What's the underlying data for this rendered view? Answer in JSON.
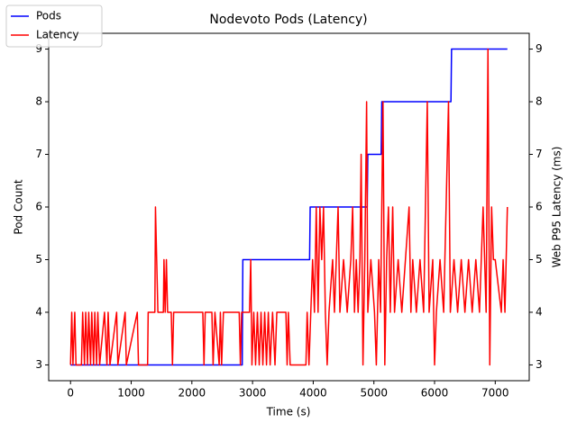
{
  "chart_data": {
    "type": "line",
    "title": "Nodevoto Pods (Latency)",
    "x_label": "Time (s)",
    "y_label": "Pod Count",
    "y2_label": "Web P95 Latency (ms)",
    "xlim": [
      -360,
      7560
    ],
    "xticks": [
      0,
      1000,
      2000,
      3000,
      4000,
      5000,
      6000,
      7000
    ],
    "ylim": [
      2.7,
      9.3
    ],
    "yticks": [
      3,
      4,
      5,
      6,
      7,
      8,
      9
    ],
    "y2lim": [
      2.7,
      9.3
    ],
    "y2ticks": [
      3,
      4,
      5,
      6,
      7,
      8,
      9
    ],
    "legend": "upper left",
    "series": [
      {
        "name": "Pods",
        "color": "#0000ff",
        "x": [
          0,
          2830,
          2840,
          3940,
          3950,
          4890,
          4900,
          5120,
          5130,
          6270,
          6280,
          7200
        ],
        "values": [
          3,
          3,
          5,
          5,
          6,
          6,
          7,
          7,
          8,
          8,
          9,
          9
        ]
      },
      {
        "name": "Latency",
        "color": "#ff0000",
        "axis": "y2",
        "x": [
          0,
          20,
          40,
          70,
          90,
          180,
          200,
          230,
          250,
          280,
          300,
          330,
          350,
          380,
          400,
          430,
          450,
          480,
          560,
          600,
          620,
          650,
          760,
          780,
          900,
          920,
          1100,
          1120,
          1270,
          1280,
          1390,
          1400,
          1420,
          1440,
          1530,
          1540,
          1560,
          1580,
          1600,
          1660,
          1680,
          1700,
          2180,
          2200,
          2220,
          2330,
          2350,
          2380,
          2450,
          2470,
          2490,
          2520,
          2780,
          2800,
          2820,
          2950,
          2970,
          2990,
          3020,
          3050,
          3080,
          3110,
          3140,
          3170,
          3200,
          3230,
          3260,
          3290,
          3330,
          3370,
          3400,
          3550,
          3570,
          3590,
          3620,
          3880,
          3900,
          3930,
          3960,
          3990,
          4020,
          4050,
          4080,
          4110,
          4140,
          4170,
          4200,
          4230,
          4260,
          4320,
          4350,
          4410,
          4440,
          4500,
          4560,
          4620,
          4650,
          4680,
          4710,
          4740,
          4770,
          4790,
          4820,
          4850,
          4880,
          4900,
          4950,
          5010,
          5040,
          5080,
          5110,
          5150,
          5180,
          5210,
          5240,
          5270,
          5310,
          5340,
          5400,
          5460,
          5520,
          5580,
          5610,
          5640,
          5700,
          5760,
          5820,
          5880,
          5910,
          5970,
          6000,
          6030,
          6090,
          6150,
          6230,
          6260,
          6320,
          6380,
          6440,
          6500,
          6560,
          6620,
          6680,
          6740,
          6800,
          6850,
          6880,
          6910,
          6940,
          6970,
          7000,
          7100,
          7130,
          7160,
          7200
        ],
        "values": [
          3,
          4,
          3,
          4,
          3,
          3,
          4,
          3,
          4,
          3,
          4,
          3,
          4,
          3,
          4,
          3,
          4,
          3,
          4,
          3,
          4,
          3,
          4,
          3,
          4,
          3,
          4,
          3,
          3,
          4,
          4,
          6,
          5,
          4,
          4,
          5,
          4,
          5,
          4,
          4,
          3,
          4,
          4,
          3,
          4,
          4,
          3,
          4,
          3,
          4,
          3,
          4,
          4,
          3,
          4,
          4,
          5,
          3,
          4,
          3,
          4,
          3,
          4,
          3,
          4,
          3,
          4,
          3,
          4,
          3,
          4,
          4,
          3,
          4,
          3,
          3,
          4,
          3,
          4,
          5,
          4,
          6,
          4,
          6,
          5,
          6,
          4,
          3,
          4,
          5,
          4,
          6,
          4,
          5,
          4,
          5,
          6,
          4,
          5,
          4,
          5,
          7,
          3,
          5,
          8,
          4,
          5,
          4,
          3,
          5,
          4,
          8,
          3,
          5,
          6,
          4,
          6,
          4,
          5,
          4,
          5,
          6,
          4,
          5,
          4,
          5,
          4,
          8,
          4,
          5,
          3,
          4,
          5,
          4,
          8,
          4,
          5,
          4,
          5,
          4,
          5,
          4,
          5,
          4,
          6,
          4,
          9,
          3,
          6,
          5,
          5,
          4,
          5,
          4,
          6
        ]
      }
    ]
  }
}
